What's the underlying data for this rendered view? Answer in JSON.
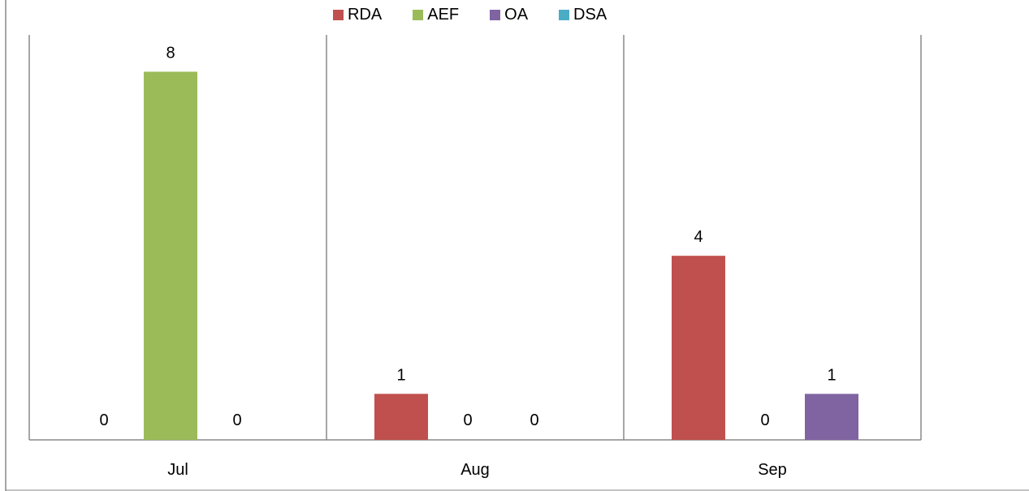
{
  "chart_data": {
    "type": "bar",
    "title": "",
    "xlabel": "",
    "ylabel": "",
    "categories": [
      "Jul",
      "Aug",
      "Sep"
    ],
    "ylim": [
      0,
      8.8
    ],
    "grid": false,
    "legend_position": "top",
    "series": [
      {
        "name": "RDA",
        "color": "#c0504d",
        "values": [
          0,
          1,
          4
        ]
      },
      {
        "name": "AEF",
        "color": "#9bbb59",
        "values": [
          8,
          0,
          0
        ]
      },
      {
        "name": "OA",
        "color": "#8064a2",
        "values": [
          0,
          0,
          1
        ]
      },
      {
        "name": "DSA",
        "color": "#4bacc6",
        "values": [
          null,
          null,
          null
        ]
      }
    ],
    "data_labels": [
      {
        "series": "RDA",
        "category": "Jul",
        "text": "0"
      },
      {
        "series": "AEF",
        "category": "Jul",
        "text": "8"
      },
      {
        "series": "OA",
        "category": "Jul",
        "text": "0"
      },
      {
        "series": "RDA",
        "category": "Aug",
        "text": "1"
      },
      {
        "series": "AEF",
        "category": "Aug",
        "text": "0"
      },
      {
        "series": "OA",
        "category": "Aug",
        "text": "0"
      },
      {
        "series": "RDA",
        "category": "Sep",
        "text": "4"
      },
      {
        "series": "AEF",
        "category": "Sep",
        "text": "0"
      },
      {
        "series": "OA",
        "category": "Sep",
        "text": "1"
      }
    ]
  }
}
